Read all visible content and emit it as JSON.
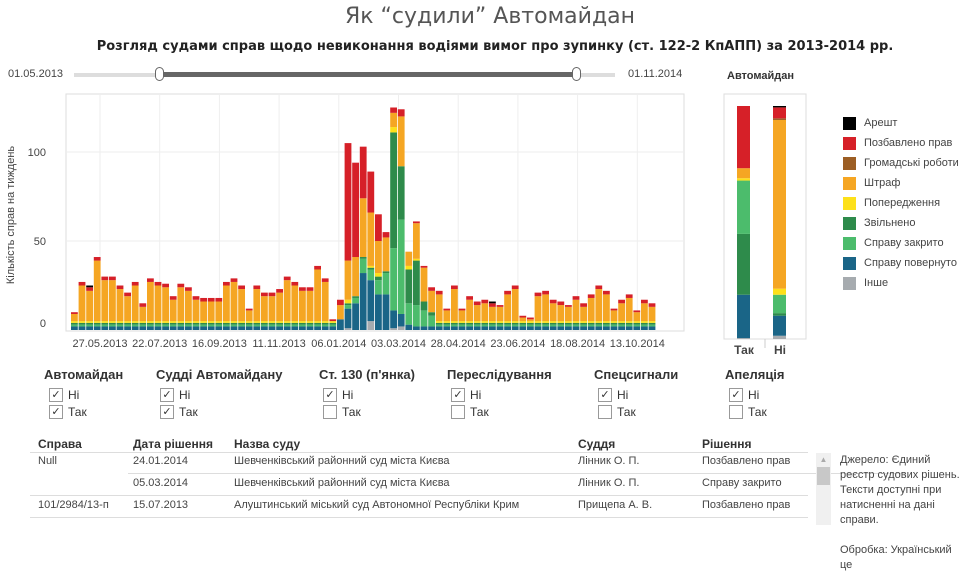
{
  "title": "Як “судили” Автомайдан",
  "subtitle": "Розгляд судами справ щодо невиконання водіями вимог про зупинку (ст. 122-2 КпАПП) за 2013-2014 рр.",
  "slider": {
    "start_label": "01.05.2013",
    "end_label": "01.11.2014"
  },
  "colors": {
    "Арешт": "#000000",
    "Позбавлено прав": "#d62028",
    "Громадські роботи": "#9c5e24",
    "Штраф": "#f5a623",
    "Попередження": "#fde01a",
    "Звільнено": "#2e8b4b",
    "Справу закрито": "#4cbc6c",
    "Справу повернуто": "#1a6587",
    "Інше": "#a6abaf"
  },
  "chart_data": [
    {
      "type": "bar",
      "stacked": true,
      "ylabel": "Кількість справ на тиждень",
      "ylim": [
        0,
        130
      ],
      "yticks": [
        0,
        50,
        100
      ],
      "grid": true,
      "xtick_labels": [
        "27.05.2013",
        "22.07.2013",
        "16.09.2013",
        "11.11.2013",
        "06.01.2014",
        "03.03.2014",
        "28.04.2014",
        "23.06.2014",
        "18.08.2014",
        "13.10.2014"
      ],
      "first_week": "06.05.2013",
      "weeks": 77,
      "series": [
        {
          "name": "Інше",
          "values": [
            0,
            0,
            0,
            0,
            0,
            0,
            0,
            0,
            0,
            0,
            0,
            0,
            0,
            0,
            0,
            0,
            0,
            0,
            0,
            0,
            0,
            0,
            0,
            0,
            0,
            0,
            0,
            0,
            0,
            0,
            0,
            0,
            0,
            0,
            0,
            0,
            1,
            0,
            0,
            5,
            0,
            0,
            1,
            2,
            0,
            0,
            0,
            0,
            0,
            0,
            0,
            0,
            0,
            0,
            0,
            0,
            0,
            0,
            0,
            0,
            0,
            0,
            0,
            0,
            0,
            0,
            0,
            0,
            0,
            0,
            0,
            0,
            0,
            0,
            0,
            0,
            0
          ]
        },
        {
          "name": "Справу повернуто",
          "values": [
            2,
            2,
            2,
            2,
            2,
            2,
            2,
            2,
            2,
            2,
            2,
            2,
            2,
            2,
            2,
            2,
            2,
            2,
            2,
            2,
            2,
            2,
            2,
            2,
            2,
            2,
            2,
            2,
            2,
            2,
            2,
            2,
            2,
            2,
            2,
            6,
            11,
            15,
            32,
            23,
            20,
            20,
            10,
            7,
            3,
            2,
            2,
            2,
            2,
            2,
            2,
            2,
            2,
            2,
            2,
            2,
            2,
            2,
            2,
            2,
            2,
            2,
            2,
            2,
            2,
            2,
            2,
            2,
            2,
            2,
            2,
            2,
            2,
            2,
            2,
            2,
            2
          ]
        },
        {
          "name": "Справу закрито",
          "values": [
            1,
            1,
            1,
            1,
            1,
            1,
            1,
            1,
            1,
            1,
            1,
            1,
            1,
            1,
            1,
            1,
            1,
            1,
            1,
            1,
            1,
            1,
            1,
            1,
            1,
            1,
            1,
            1,
            1,
            1,
            1,
            1,
            1,
            1,
            1,
            0,
            2,
            3,
            8,
            6,
            8,
            12,
            35,
            53,
            12,
            12,
            9,
            6,
            1,
            1,
            1,
            1,
            1,
            1,
            1,
            1,
            1,
            1,
            1,
            1,
            1,
            1,
            1,
            1,
            1,
            1,
            1,
            1,
            1,
            1,
            1,
            1,
            1,
            1,
            1,
            1,
            1
          ]
        },
        {
          "name": "Звільнено",
          "values": [
            1,
            1,
            1,
            1,
            1,
            1,
            1,
            1,
            1,
            1,
            1,
            1,
            1,
            1,
            1,
            1,
            1,
            1,
            1,
            1,
            1,
            1,
            1,
            1,
            1,
            1,
            1,
            1,
            1,
            1,
            1,
            1,
            1,
            1,
            1,
            0,
            1,
            1,
            1,
            1,
            2,
            1,
            65,
            30,
            19,
            25,
            5,
            2,
            1,
            1,
            1,
            1,
            1,
            1,
            1,
            1,
            1,
            1,
            1,
            1,
            1,
            1,
            1,
            1,
            1,
            1,
            1,
            1,
            1,
            1,
            1,
            1,
            1,
            1,
            1,
            1,
            1
          ]
        },
        {
          "name": "Попередження",
          "values": [
            1,
            1,
            1,
            1,
            1,
            1,
            1,
            1,
            1,
            1,
            1,
            1,
            1,
            1,
            1,
            1,
            1,
            1,
            1,
            1,
            1,
            1,
            1,
            1,
            1,
            1,
            1,
            1,
            1,
            1,
            1,
            1,
            1,
            1,
            1,
            0,
            2,
            0,
            0,
            1,
            2,
            0,
            3,
            0,
            2,
            1,
            0,
            0,
            1,
            1,
            1,
            1,
            1,
            1,
            1,
            1,
            1,
            1,
            1,
            1,
            1,
            1,
            1,
            1,
            1,
            1,
            1,
            1,
            1,
            1,
            1,
            1,
            1,
            1,
            1,
            1,
            1
          ]
        },
        {
          "name": "Штраф",
          "values": [
            4,
            20,
            17,
            34,
            23,
            23,
            18,
            14,
            20,
            8,
            22,
            20,
            19,
            12,
            19,
            17,
            12,
            11,
            11,
            11,
            20,
            22,
            18,
            6,
            18,
            14,
            14,
            16,
            23,
            20,
            17,
            17,
            29,
            22,
            0,
            8,
            22,
            22,
            33,
            30,
            18,
            19,
            8,
            28,
            8,
            20,
            19,
            12,
            15,
            6,
            18,
            6,
            12,
            9,
            10,
            8,
            8,
            15,
            18,
            2,
            1,
            14,
            15,
            10,
            9,
            8,
            12,
            8,
            13,
            18,
            15,
            6,
            10,
            13,
            5,
            10,
            8
          ]
        },
        {
          "name": "Громадські роботи",
          "values": [
            0,
            0,
            0,
            0,
            0,
            0,
            0,
            0,
            0,
            0,
            0,
            0,
            0,
            0,
            0,
            0,
            0,
            0,
            0,
            0,
            0,
            0,
            0,
            0,
            0,
            0,
            0,
            0,
            0,
            0,
            0,
            0,
            0,
            0,
            0,
            0,
            0,
            0,
            0,
            0,
            0,
            0,
            0,
            0,
            0,
            0,
            0,
            0,
            0,
            0,
            0,
            0,
            0,
            0,
            0,
            0,
            0,
            0,
            0,
            0,
            0,
            0,
            0,
            0,
            0,
            0,
            0,
            0,
            0,
            0,
            0,
            0,
            0,
            0,
            0,
            0,
            0
          ]
        },
        {
          "name": "Позбавлено прав",
          "values": [
            1,
            2,
            2,
            2,
            2,
            2,
            2,
            2,
            2,
            2,
            2,
            2,
            2,
            2,
            2,
            2,
            2,
            2,
            2,
            2,
            2,
            2,
            2,
            1,
            2,
            2,
            2,
            2,
            2,
            2,
            2,
            2,
            2,
            2,
            1,
            3,
            66,
            53,
            29,
            23,
            15,
            3,
            3,
            4,
            0,
            1,
            1,
            2,
            2,
            1,
            2,
            1,
            2,
            2,
            2,
            2,
            1,
            2,
            2,
            1,
            1,
            2,
            2,
            2,
            2,
            1,
            2,
            2,
            2,
            2,
            2,
            1,
            2,
            2,
            1,
            2,
            2
          ]
        },
        {
          "name": "Арешт",
          "values": [
            0,
            0,
            1,
            0,
            0,
            0,
            0,
            0,
            0,
            0,
            0,
            0,
            0,
            0,
            0,
            0,
            0,
            0,
            0,
            0,
            0,
            0,
            0,
            0,
            0,
            0,
            0,
            0,
            0,
            0,
            0,
            0,
            0,
            0,
            0,
            0,
            0,
            0,
            0,
            0,
            0,
            0,
            0,
            0,
            0,
            0,
            0,
            0,
            0,
            0,
            0,
            0,
            0,
            0,
            0,
            1,
            0,
            0,
            0,
            0,
            0,
            0,
            0,
            0,
            0,
            0,
            0,
            0,
            0,
            0,
            0,
            0,
            0,
            0,
            0,
            0,
            0
          ]
        }
      ]
    },
    {
      "type": "bar",
      "stacked": true,
      "normalized": true,
      "title": "Автомайдан",
      "categories": [
        "Так",
        "Ні"
      ],
      "unit": "%",
      "series": [
        {
          "name": "Інше",
          "values": [
            0.4,
            1.4
          ]
        },
        {
          "name": "Справу повернуто",
          "values": [
            18.6,
            8.6
          ]
        },
        {
          "name": "Справу закрито",
          "values": [
            0,
            0
          ]
        },
        {
          "name": "Звільнено",
          "values": [
            26.1,
            1.1
          ]
        },
        {
          "name": "Справу закрито ",
          "values": [
            22.9,
            7.9
          ]
        },
        {
          "name": "Попередження",
          "values": [
            1.0,
            2.6
          ]
        },
        {
          "name": "Штраф",
          "values": [
            4.3,
            72.4
          ]
        },
        {
          "name": "Громадські роботи",
          "values": [
            0,
            0.7
          ]
        },
        {
          "name": "Позбавлено прав",
          "values": [
            26.7,
            4.7
          ]
        },
        {
          "name": "Арешт",
          "values": [
            0,
            0.6
          ]
        }
      ]
    }
  ],
  "legend": [
    "Арешт",
    "Позбавлено прав",
    "Громадські роботи",
    "Штраф",
    "Попередження",
    "Звільнено",
    "Справу закрито",
    "Справу повернуто",
    "Інше"
  ],
  "filters": [
    {
      "title": "Автомайдан",
      "options": [
        {
          "label": "Ні",
          "checked": true
        },
        {
          "label": "Так",
          "checked": true
        }
      ]
    },
    {
      "title": "Судді Автомайдану",
      "options": [
        {
          "label": "Ні",
          "checked": true
        },
        {
          "label": "Так",
          "checked": true
        }
      ]
    },
    {
      "title": "Ст. 130 (п'янка)",
      "options": [
        {
          "label": "Ні",
          "checked": true
        },
        {
          "label": "Так",
          "checked": false
        }
      ]
    },
    {
      "title": "Переслідування",
      "options": [
        {
          "label": "Ні",
          "checked": true
        },
        {
          "label": "Так",
          "checked": false
        }
      ]
    },
    {
      "title": "Спецсигнали",
      "options": [
        {
          "label": "Ні",
          "checked": true
        },
        {
          "label": "Так",
          "checked": false
        }
      ]
    },
    {
      "title": "Апеляція",
      "options": [
        {
          "label": "Ні",
          "checked": true
        },
        {
          "label": "Так",
          "checked": false
        }
      ]
    }
  ],
  "table": {
    "headers": [
      "Справа",
      "Дата рішення",
      "Назва суду",
      "Суддя",
      "Рішення"
    ],
    "rows": [
      [
        "Null",
        "24.01.2014",
        "Шевченківський районний суд міста Києва",
        "Лінник О. П.",
        "Позбавлено прав"
      ],
      [
        "",
        "05.03.2014",
        "Шевченківський районний суд міста Києва",
        "Лінник О. П.",
        "Справу закрито"
      ],
      [
        "101/2984/13-п",
        "15.07.2013",
        "Алуштинський міський суд Автономної Республіки Крим",
        "Прищепа А. В.",
        "Позбавлено прав"
      ]
    ]
  },
  "note": {
    "source": "Джерело: Єдиний реєстр судових рішень. Тексти доступні при натисненні на дані справи.",
    "processing": "Обробка: Український це"
  }
}
